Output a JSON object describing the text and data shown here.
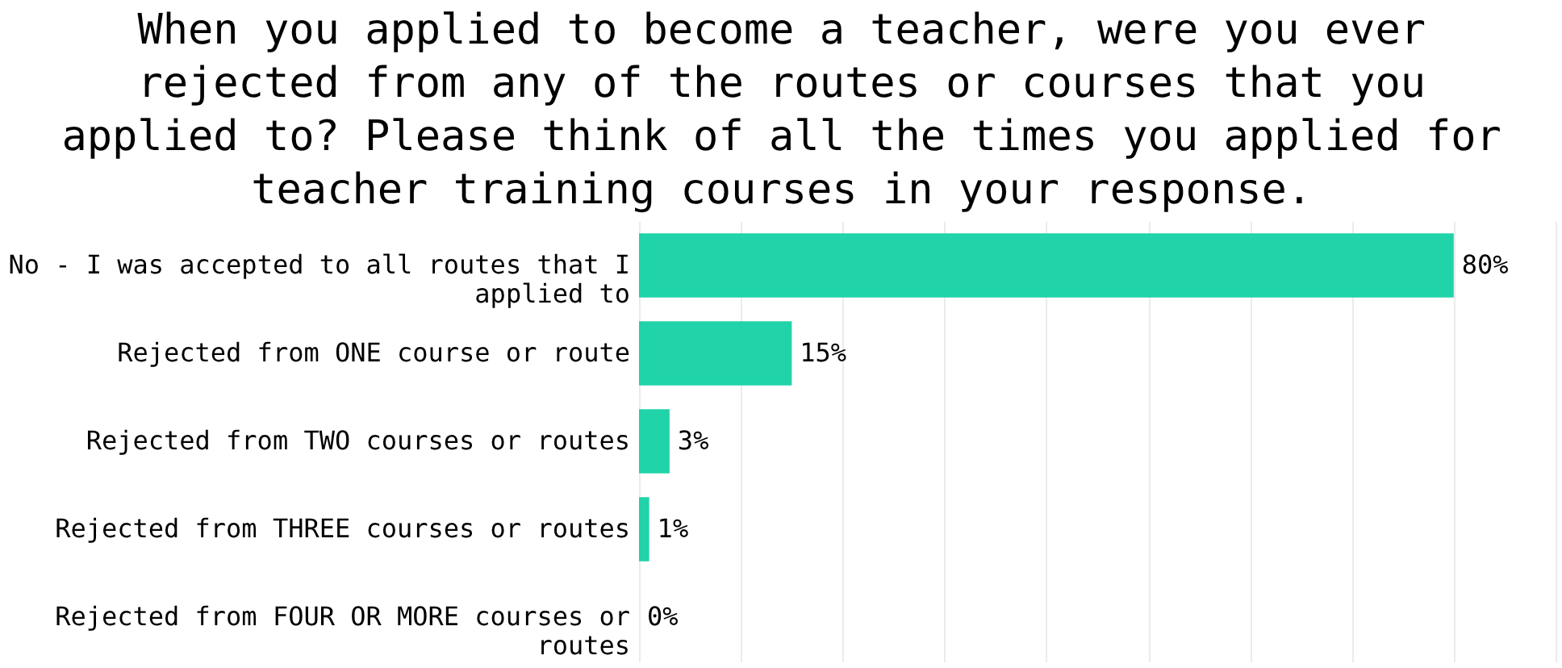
{
  "chart_data": {
    "type": "bar",
    "orientation": "horizontal",
    "title": "When you applied to become a teacher, were you ever rejected from any of the routes or courses that you applied to? Please think of all the times you applied for teacher training courses in your response.",
    "categories": [
      "No - I was accepted to all routes that I applied to",
      "Rejected from ONE course or route",
      "Rejected from TWO courses or routes",
      "Rejected from THREE courses or routes",
      "Rejected from FOUR OR MORE courses or routes"
    ],
    "values": [
      80,
      15,
      3,
      1,
      0
    ],
    "value_labels": [
      "80%",
      "15%",
      "3%",
      "1%",
      "0%"
    ],
    "color": "#20d3a8",
    "xlim": [
      0,
      90
    ],
    "xticks": [
      {
        "value": 0,
        "label": null
      },
      {
        "value": 10,
        "label": null
      },
      {
        "value": 20,
        "label": null
      },
      {
        "value": 30,
        "label": null
      },
      {
        "value": 40,
        "label": null
      },
      {
        "value": 50,
        "label": null
      },
      {
        "value": 60,
        "label": null
      },
      {
        "value": 70,
        "label": null
      },
      {
        "value": 80,
        "label": null
      },
      {
        "value": 90,
        "label": null
      }
    ],
    "grid": "x",
    "tick_labels": "y"
  }
}
